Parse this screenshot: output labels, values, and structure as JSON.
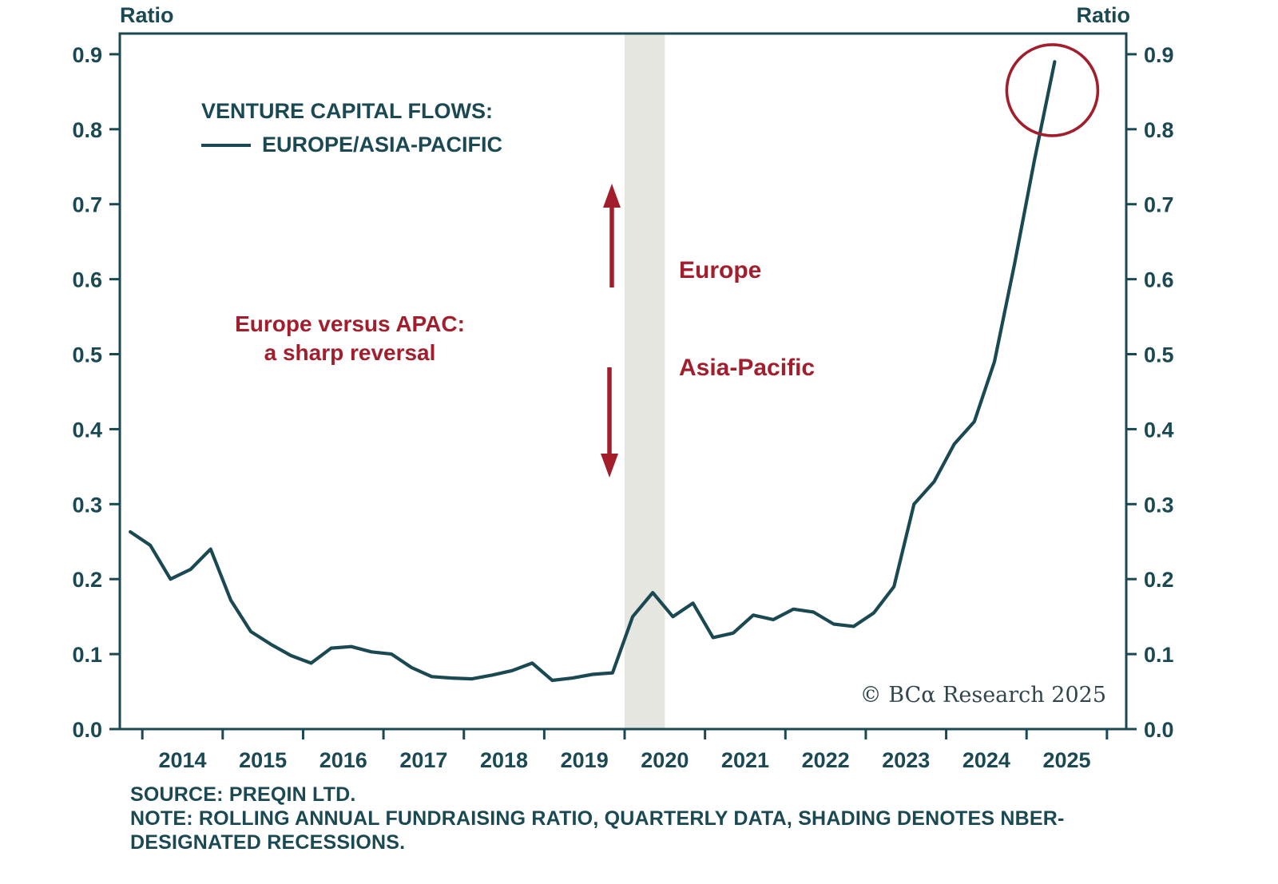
{
  "chart_data": {
    "type": "line",
    "title": "VENTURE CAPITAL FLOWS:",
    "legend": {
      "series_label": "EUROPE/ASIA-PACIFIC",
      "position": "top-left"
    },
    "ylabel_left": "Ratio",
    "ylabel_right": "Ratio",
    "ylim": [
      0.0,
      0.9276
    ],
    "yticks": [
      0.0,
      0.1,
      0.2,
      0.3,
      0.4,
      0.5,
      0.6,
      0.7,
      0.8,
      0.9
    ],
    "ytick_labels": [
      "0.0",
      "0.1",
      "0.2",
      "0.3",
      "0.4",
      "0.5",
      "0.6",
      "0.7",
      "0.8",
      "0.9"
    ],
    "xlim": [
      2013.72,
      2026.24
    ],
    "x_year_ticks": [
      2014,
      2015,
      2016,
      2017,
      2018,
      2019,
      2020,
      2021,
      2022,
      2023,
      2024,
      2025,
      2026
    ],
    "x_year_labels": [
      "2014",
      "2015",
      "2016",
      "2017",
      "2018",
      "2019",
      "2020",
      "2021",
      "2022",
      "2023",
      "2024",
      "2025"
    ],
    "grid": false,
    "series": [
      {
        "name": "EUROPE/ASIA-PACIFIC",
        "x": [
          2013.85,
          2014.1,
          2014.35,
          2014.6,
          2014.85,
          2015.1,
          2015.35,
          2015.6,
          2015.85,
          2016.1,
          2016.35,
          2016.6,
          2016.85,
          2017.1,
          2017.35,
          2017.6,
          2017.85,
          2018.1,
          2018.35,
          2018.6,
          2018.85,
          2019.1,
          2019.35,
          2019.6,
          2019.85,
          2020.1,
          2020.35,
          2020.6,
          2020.85,
          2021.1,
          2021.35,
          2021.6,
          2021.85,
          2022.1,
          2022.35,
          2022.6,
          2022.85,
          2023.1,
          2023.35,
          2023.6,
          2023.85,
          2024.1,
          2024.35,
          2024.6,
          2024.85,
          2025.1,
          2025.35
        ],
        "values": [
          0.263,
          0.245,
          0.2,
          0.213,
          0.24,
          0.172,
          0.13,
          0.113,
          0.098,
          0.088,
          0.108,
          0.11,
          0.103,
          0.1,
          0.082,
          0.07,
          0.068,
          0.067,
          0.072,
          0.078,
          0.088,
          0.065,
          0.068,
          0.073,
          0.075,
          0.15,
          0.182,
          0.15,
          0.168,
          0.122,
          0.128,
          0.152,
          0.146,
          0.16,
          0.156,
          0.14,
          0.137,
          0.155,
          0.19,
          0.3,
          0.33,
          0.38,
          0.41,
          0.49,
          0.62,
          0.76,
          0.89
        ]
      }
    ],
    "recession_band": {
      "x0": 2020.0,
      "x1": 2020.5
    },
    "highlight_circle": {
      "x": 2025.32,
      "y": 0.852,
      "r": 57
    },
    "line_color": "#1b4953",
    "annotation_color": "#a31e2c",
    "band_color": "#e6e6e1"
  },
  "annotations": {
    "center_note_line1": "Europe versus APAC:",
    "center_note_line2": "a sharp reversal",
    "up_label": "Europe",
    "down_label": "Asia-Pacific"
  },
  "footer": {
    "source": "SOURCE: PREQIN LTD.",
    "note_line1": "NOTE: ROLLING ANNUAL FUNDRAISING RATIO, QUARTERLY DATA, SHADING DENOTES NBER-",
    "note_line2": "DESIGNATED RECESSIONS.",
    "copyright": "© BCα Research 2025"
  }
}
